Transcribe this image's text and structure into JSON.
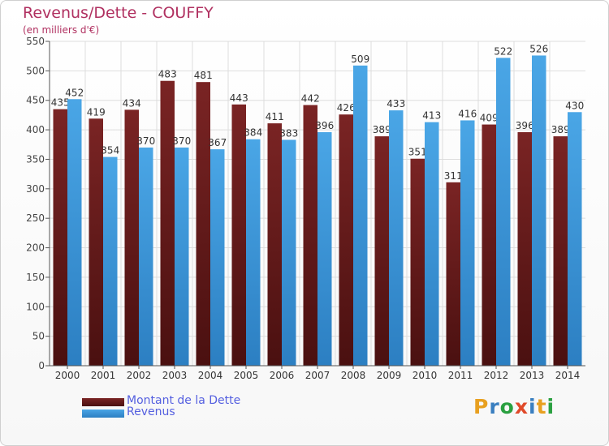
{
  "header": {
    "title": "Revenus/Dette - COUFFY",
    "subtitle": "(en milliers d'€)"
  },
  "logo": {
    "text": "Proxiti",
    "letter_colors": [
      "#e8a020",
      "#3a7fc0",
      "#2aa040",
      "#e04a2a",
      "#3a7fc0",
      "#e8a020",
      "#2aa040"
    ]
  },
  "colors": {
    "debt": "#7a2424",
    "debt_dark": "#4a1010",
    "revenue": "#4aa6e6",
    "revenue_dark": "#2c7fc2",
    "axis": "#555555",
    "grid": "#dddddd",
    "title": "#b03060",
    "legend_text": "#5560e0"
  },
  "chart_data": {
    "type": "bar",
    "categories": [
      "2000",
      "2001",
      "2002",
      "2003",
      "2004",
      "2005",
      "2006",
      "2007",
      "2008",
      "2009",
      "2010",
      "2011",
      "2012",
      "2013",
      "2014"
    ],
    "series": [
      {
        "name": "Montant de la Dette",
        "values": [
          435,
          419,
          434,
          483,
          481,
          443,
          411,
          442,
          426,
          389,
          351,
          311,
          409,
          396,
          389
        ]
      },
      {
        "name": "Revenus",
        "values": [
          452,
          354,
          370,
          370,
          367,
          384,
          383,
          396,
          509,
          433,
          413,
          416,
          522,
          526,
          430
        ]
      }
    ],
    "ylim": [
      0,
      550
    ],
    "yticks": [
      0,
      50,
      100,
      150,
      200,
      250,
      300,
      350,
      400,
      450,
      500,
      550
    ],
    "grid": true,
    "legend_position": "bottom-left"
  }
}
